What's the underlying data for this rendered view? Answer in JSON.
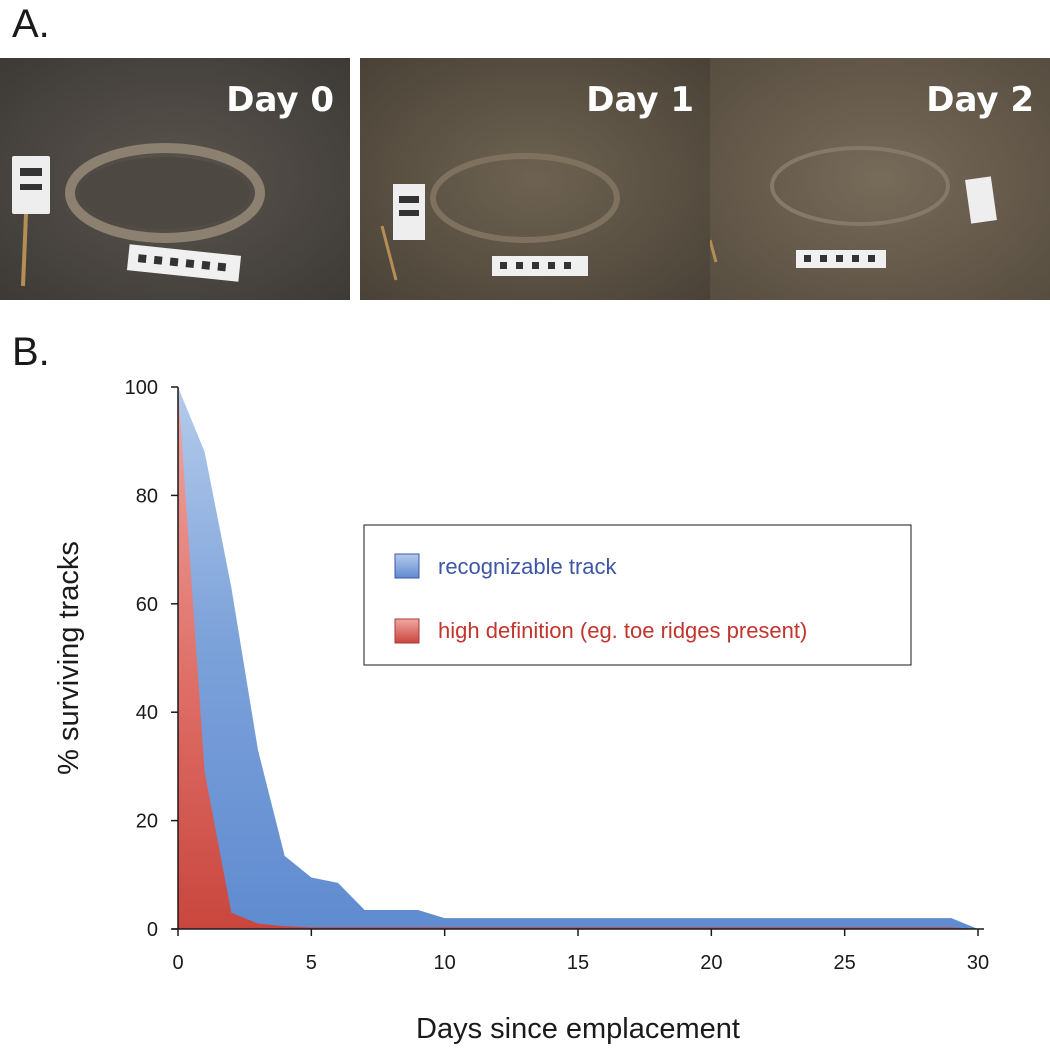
{
  "panel_a": {
    "label": "A.",
    "photos": [
      {
        "day_label": "Day 0"
      },
      {
        "day_label": "Day 1"
      },
      {
        "day_label": "Day 2"
      }
    ]
  },
  "panel_b": {
    "label": "B."
  },
  "chart_data": {
    "type": "area",
    "xlabel": "Days since emplacement",
    "ylabel": "% surviving tracks",
    "xlim": [
      0,
      30
    ],
    "ylim": [
      0,
      100
    ],
    "xticks": [
      0,
      5,
      10,
      15,
      20,
      25,
      30
    ],
    "yticks": [
      0,
      20,
      40,
      60,
      80,
      100
    ],
    "grid": false,
    "legend_position": "center-right",
    "series": [
      {
        "name": "recognizable track",
        "color": "#6f96d3",
        "x": [
          0,
          1,
          2,
          3,
          4,
          5,
          6,
          7,
          8,
          9,
          10,
          11,
          12,
          13,
          14,
          15,
          16,
          17,
          18,
          19,
          20,
          21,
          22,
          23,
          24,
          25,
          26,
          27,
          28,
          29,
          30
        ],
        "y": [
          100,
          88,
          63,
          33,
          13.5,
          9.5,
          8.5,
          3.5,
          3.5,
          3.5,
          2,
          2,
          2,
          2,
          2,
          2,
          2,
          2,
          2,
          2,
          2,
          2,
          2,
          2,
          2,
          2,
          2,
          2,
          2,
          2,
          0
        ]
      },
      {
        "name": "high definition (eg. toe ridges present)",
        "color": "#d9534f",
        "x": [
          0,
          1,
          2,
          3,
          4,
          5,
          6,
          7,
          8,
          9,
          10,
          11,
          12,
          13,
          14,
          15,
          16,
          17,
          18,
          19,
          20,
          21,
          22,
          23,
          24,
          25,
          26,
          27,
          28,
          29,
          30
        ],
        "y": [
          100,
          29,
          3,
          1,
          0.5,
          0.3,
          0.3,
          0.3,
          0.3,
          0.3,
          0.3,
          0.3,
          0.3,
          0.3,
          0.3,
          0.3,
          0.3,
          0.3,
          0.3,
          0.3,
          0.3,
          0.3,
          0.3,
          0.3,
          0.3,
          0.3,
          0.3,
          0.3,
          0.3,
          0.3,
          0
        ]
      }
    ]
  }
}
